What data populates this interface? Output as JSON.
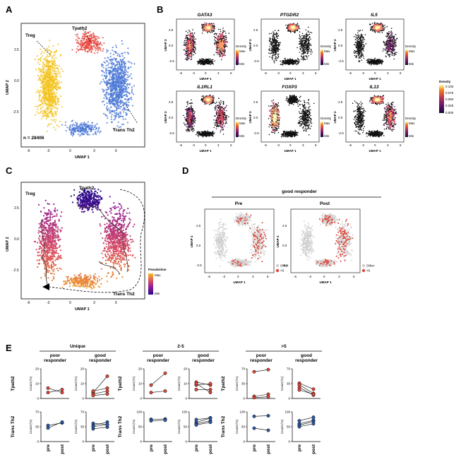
{
  "panels": {
    "A": {
      "letter": "A",
      "labels": {
        "treg": "Treg",
        "tpath2": "Tpath2",
        "transth2": "Trans Th2",
        "count": "n = 28406"
      },
      "xlabel": "UMAP 1",
      "ylabel": "UMAP 2",
      "xticks": [
        "-6",
        "-3",
        "0",
        "3",
        "6"
      ],
      "yticks": [
        "2.5",
        "0.0",
        "-2.5"
      ]
    },
    "B": {
      "letter": "B",
      "genes": [
        "GATA3",
        "PTGDR2",
        "IL5",
        "IL1RL1",
        "FOXP3",
        "IL13"
      ],
      "xlabel": "UMAP 1",
      "ylabel": "UMAP 2",
      "xticks": [
        "-6",
        "-3",
        "0",
        "3",
        "6"
      ],
      "yticks": [
        "2.5",
        "0.0",
        "-2.5"
      ],
      "small_legend": {
        "title": "Density",
        "max": "Max",
        "min": "Min"
      },
      "density_legend": {
        "title": "Density",
        "ticks": [
          "0.100",
          "0.075",
          "0.050",
          "0.025",
          "0.000"
        ]
      }
    },
    "C": {
      "letter": "C",
      "labels": {
        "treg": "Treg",
        "tpath2": "Tpath2",
        "transth2": "Trans Th2"
      },
      "xlabel": "UMAP 1",
      "ylabel": "UMAP 2",
      "xticks": [
        "-6",
        "-3",
        "0",
        "3",
        "6"
      ],
      "yticks": [
        "2.5",
        "0.0",
        "-2.5"
      ],
      "legend": {
        "title": "Pseudotime",
        "max": "Max",
        "min": "Min"
      }
    },
    "D": {
      "letter": "D",
      "title": "good responder",
      "subplots": [
        "Pre",
        "Post"
      ],
      "xlabel": "UMAP 1",
      "ylabel": "UMAP 2",
      "xticks": [
        "-6",
        "-3",
        "0",
        "3",
        "6"
      ],
      "yticks": [
        "2.5",
        "0.0",
        "-2.5"
      ],
      "legend": {
        "other": "Other",
        "gt5": ">5"
      }
    },
    "E": {
      "letter": "E",
      "groups": [
        "Unique",
        "2-5",
        ">5"
      ],
      "responders": [
        "poor\nresponder",
        "good\nresponder"
      ],
      "poor_l1": "poor",
      "good_l1": "good",
      "resp_l2": "responder",
      "rows": [
        "Tpath2",
        "Trans Th2"
      ],
      "ylabel": "Count (%)",
      "xcats": [
        "pre",
        "post"
      ]
    }
  },
  "colors": {
    "treg": "#f2c21a",
    "tpath2": "#e8453c",
    "transth2": "#4b78d6",
    "red": "#e0473a",
    "blue": "#2e5aa8"
  },
  "chart_data": [
    {
      "type": "line",
      "title": "Unique",
      "panels": [
        {
          "row": "Tpath2",
          "responder": "poor responder",
          "ylim": [
            0,
            20
          ],
          "yticks": [
            "0",
            "10",
            "20"
          ],
          "x": [
            "pre",
            "post"
          ],
          "series": [
            {
              "values": [
                7,
                4
              ]
            },
            {
              "values": [
                4,
                6
              ]
            }
          ]
        },
        {
          "row": "Tpath2",
          "responder": "good responder",
          "ylim": [
            0,
            20
          ],
          "yticks": [
            "0",
            "10",
            "20"
          ],
          "x": [
            "pre",
            "post"
          ],
          "series": [
            {
              "values": [
                4,
                15
              ]
            },
            {
              "values": [
                5,
                7
              ]
            },
            {
              "values": [
                3,
                5
              ]
            },
            {
              "values": [
                2,
                3
              ]
            }
          ]
        },
        {
          "row": "Trans Th2",
          "responder": "poor responder",
          "ylim": [
            0,
            70
          ],
          "yticks": [
            "0",
            "35",
            "70"
          ],
          "x": [
            "pre",
            "post"
          ],
          "series": [
            {
              "values": [
                38,
                44
              ]
            },
            {
              "values": [
                32,
                46
              ]
            }
          ]
        },
        {
          "row": "Trans Th2",
          "responder": "good responder",
          "ylim": [
            0,
            70
          ],
          "yticks": [
            "0",
            "35",
            "70"
          ],
          "x": [
            "pre",
            "post"
          ],
          "series": [
            {
              "values": [
                43,
                40
              ]
            },
            {
              "values": [
                38,
                46
              ]
            },
            {
              "values": [
                30,
                34
              ]
            },
            {
              "values": [
                35,
                40
              ]
            }
          ]
        }
      ]
    },
    {
      "type": "line",
      "title": "2-5",
      "panels": [
        {
          "row": "Tpath2",
          "responder": "poor responder",
          "ylim": [
            0,
            20
          ],
          "yticks": [
            "0",
            "10",
            "20"
          ],
          "x": [
            "pre",
            "post"
          ],
          "series": [
            {
              "values": [
                9,
                17
              ]
            },
            {
              "values": [
                4,
                5
              ]
            }
          ]
        },
        {
          "row": "Tpath2",
          "responder": "good responder",
          "ylim": [
            0,
            20
          ],
          "yticks": [
            "0",
            "10",
            "20"
          ],
          "x": [
            "pre",
            "post"
          ],
          "series": [
            {
              "values": [
                11,
                9
              ]
            },
            {
              "values": [
                9,
                10
              ]
            },
            {
              "values": [
                10,
                4
              ]
            },
            {
              "values": [
                6,
                6
              ]
            }
          ]
        },
        {
          "row": "Trans Th2",
          "responder": "poor responder",
          "ylim": [
            0,
            100
          ],
          "yticks": [
            "0",
            "50",
            "100"
          ],
          "x": [
            "pre",
            "post"
          ],
          "series": [
            {
              "values": [
                75,
                76
              ]
            },
            {
              "values": [
                70,
                72
              ]
            }
          ]
        },
        {
          "row": "Trans Th2",
          "responder": "good responder",
          "ylim": [
            0,
            100
          ],
          "yticks": [
            "0",
            "50",
            "100"
          ],
          "x": [
            "pre",
            "post"
          ],
          "series": [
            {
              "values": [
                74,
                80
              ]
            },
            {
              "values": [
                65,
                79
              ]
            },
            {
              "values": [
                60,
                70
              ]
            },
            {
              "values": [
                56,
                65
              ]
            }
          ]
        }
      ]
    },
    {
      "type": "line",
      "title": ">5",
      "panels": [
        {
          "row": "Tpath2",
          "responder": "poor responder",
          "ylim": [
            0,
            70
          ],
          "yticks": [
            "0",
            "35",
            "70"
          ],
          "x": [
            "pre",
            "post"
          ],
          "series": [
            {
              "values": [
                63,
                68
              ]
            },
            {
              "values": [
                5,
                10
              ]
            },
            {
              "values": [
                2,
                4
              ]
            }
          ]
        },
        {
          "row": "Tpath2",
          "responder": "good responder",
          "ylim": [
            0,
            70
          ],
          "yticks": [
            "0",
            "35",
            "70"
          ],
          "x": [
            "pre",
            "post"
          ],
          "series": [
            {
              "values": [
                36,
                22
              ]
            },
            {
              "values": [
                32,
                12
              ]
            },
            {
              "values": [
                26,
                8
              ]
            },
            {
              "values": [
                20,
                10
              ]
            }
          ]
        },
        {
          "row": "Trans Th2",
          "responder": "poor responder",
          "ylim": [
            0,
            100
          ],
          "yticks": [
            "0",
            "50",
            "100"
          ],
          "x": [
            "pre",
            "post"
          ],
          "series": [
            {
              "values": [
                85,
                87
              ]
            },
            {
              "values": [
                45,
                38
              ]
            }
          ]
        },
        {
          "row": "Trans Th2",
          "responder": "good responder",
          "ylim": [
            0,
            100
          ],
          "yticks": [
            "0",
            "50",
            "100"
          ],
          "x": [
            "pre",
            "post"
          ],
          "series": [
            {
              "values": [
                70,
                82
              ]
            },
            {
              "values": [
                60,
                72
              ]
            },
            {
              "values": [
                55,
                68
              ]
            },
            {
              "values": [
                50,
                60
              ]
            }
          ]
        }
      ]
    }
  ]
}
